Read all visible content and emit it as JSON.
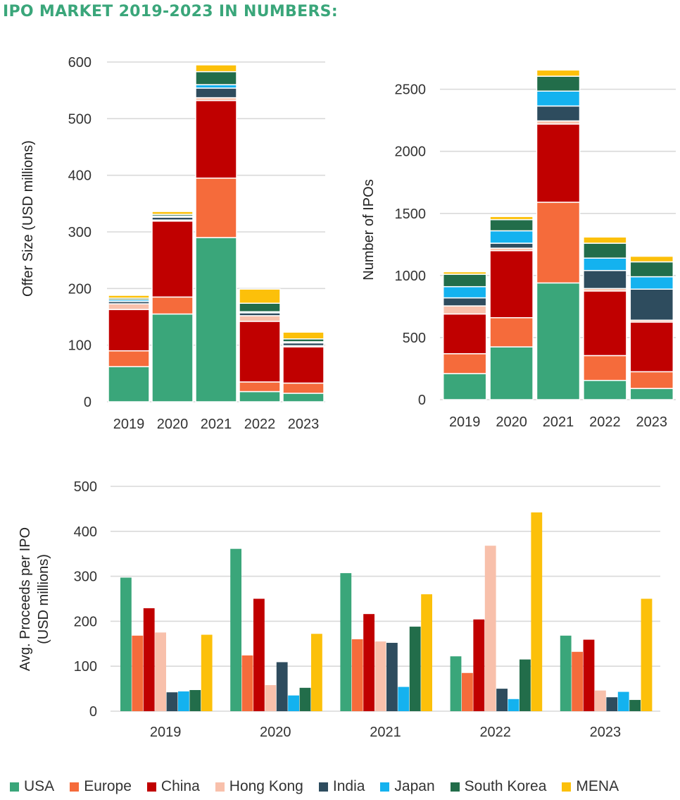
{
  "title": "IPO MARKET 2019-2023 IN NUMBERS:",
  "series": [
    {
      "name": "USA",
      "color": "#3aa67a"
    },
    {
      "name": "Europe",
      "color": "#f56b3b"
    },
    {
      "name": "China",
      "color": "#c00000"
    },
    {
      "name": "Hong Kong",
      "color": "#f8c0ab"
    },
    {
      "name": "India",
      "color": "#2e4c5e"
    },
    {
      "name": "Japan",
      "color": "#14b2ef"
    },
    {
      "name": "South Korea",
      "color": "#226d4a"
    },
    {
      "name": "MENA",
      "color": "#fcc00a"
    }
  ],
  "chart_data": [
    {
      "type": "bar",
      "stacked": true,
      "title": "",
      "xlabel": "",
      "ylabel": "Offer Size (USD millions)",
      "categories": [
        "2019",
        "2020",
        "2021",
        "2022",
        "2023"
      ],
      "ylim": [
        0,
        600
      ],
      "yticks": [
        0,
        100,
        200,
        300,
        400,
        500,
        600
      ],
      "series": [
        {
          "name": "USA",
          "values": [
            62,
            155,
            290,
            18,
            15
          ]
        },
        {
          "name": "Europe",
          "values": [
            28,
            30,
            105,
            17,
            18
          ]
        },
        {
          "name": "China",
          "values": [
            73,
            134,
            137,
            107,
            64
          ]
        },
        {
          "name": "Hong Kong",
          "values": [
            10,
            2,
            5,
            10,
            2
          ]
        },
        {
          "name": "India",
          "values": [
            4,
            5,
            17,
            5,
            5
          ]
        },
        {
          "name": "Japan",
          "values": [
            3,
            2,
            6,
            2,
            2
          ]
        },
        {
          "name": "South Korea",
          "values": [
            3,
            3,
            23,
            15,
            5
          ]
        },
        {
          "name": "MENA",
          "values": [
            5,
            5,
            12,
            25,
            12
          ]
        }
      ]
    },
    {
      "type": "bar",
      "stacked": true,
      "title": "",
      "xlabel": "",
      "ylabel": "Number of IPOs",
      "categories": [
        "2019",
        "2020",
        "2021",
        "2022",
        "2023"
      ],
      "ylim": [
        0,
        2600
      ],
      "yticks": [
        0,
        500,
        1000,
        1500,
        2000,
        2500
      ],
      "series": [
        {
          "name": "USA",
          "values": [
            210,
            425,
            940,
            155,
            90
          ]
        },
        {
          "name": "Europe",
          "values": [
            160,
            235,
            650,
            200,
            135
          ]
        },
        {
          "name": "China",
          "values": [
            320,
            540,
            630,
            520,
            400
          ]
        },
        {
          "name": "Hong Kong",
          "values": [
            65,
            20,
            25,
            20,
            15
          ]
        },
        {
          "name": "India",
          "values": [
            65,
            40,
            120,
            145,
            250
          ]
        },
        {
          "name": "Japan",
          "values": [
            90,
            100,
            120,
            100,
            100
          ]
        },
        {
          "name": "South Korea",
          "values": [
            100,
            90,
            120,
            120,
            120
          ]
        },
        {
          "name": "MENA",
          "values": [
            20,
            25,
            50,
            50,
            45
          ]
        }
      ]
    },
    {
      "type": "bar",
      "stacked": false,
      "title": "",
      "xlabel": "",
      "ylabel": "Avg. Proceeds per IPO (USD millions)",
      "ylabel_lines": [
        "Avg. Proceeds per IPO",
        "(USD millions)"
      ],
      "categories": [
        "2019",
        "2020",
        "2021",
        "2022",
        "2023"
      ],
      "ylim": [
        0,
        500
      ],
      "yticks": [
        0,
        100,
        200,
        300,
        400,
        500
      ],
      "series": [
        {
          "name": "USA",
          "values": [
            297,
            361,
            307,
            122,
            168
          ]
        },
        {
          "name": "Europe",
          "values": [
            168,
            124,
            160,
            85,
            132
          ]
        },
        {
          "name": "China",
          "values": [
            229,
            250,
            216,
            204,
            159
          ]
        },
        {
          "name": "Hong Kong",
          "values": [
            175,
            58,
            155,
            368,
            46
          ]
        },
        {
          "name": "India",
          "values": [
            42,
            109,
            152,
            50,
            31
          ]
        },
        {
          "name": "Japan",
          "values": [
            44,
            35,
            54,
            27,
            43
          ]
        },
        {
          "name": "South Korea",
          "values": [
            47,
            52,
            188,
            115,
            25
          ]
        },
        {
          "name": "MENA",
          "values": [
            170,
            172,
            260,
            442,
            250
          ]
        }
      ]
    }
  ]
}
